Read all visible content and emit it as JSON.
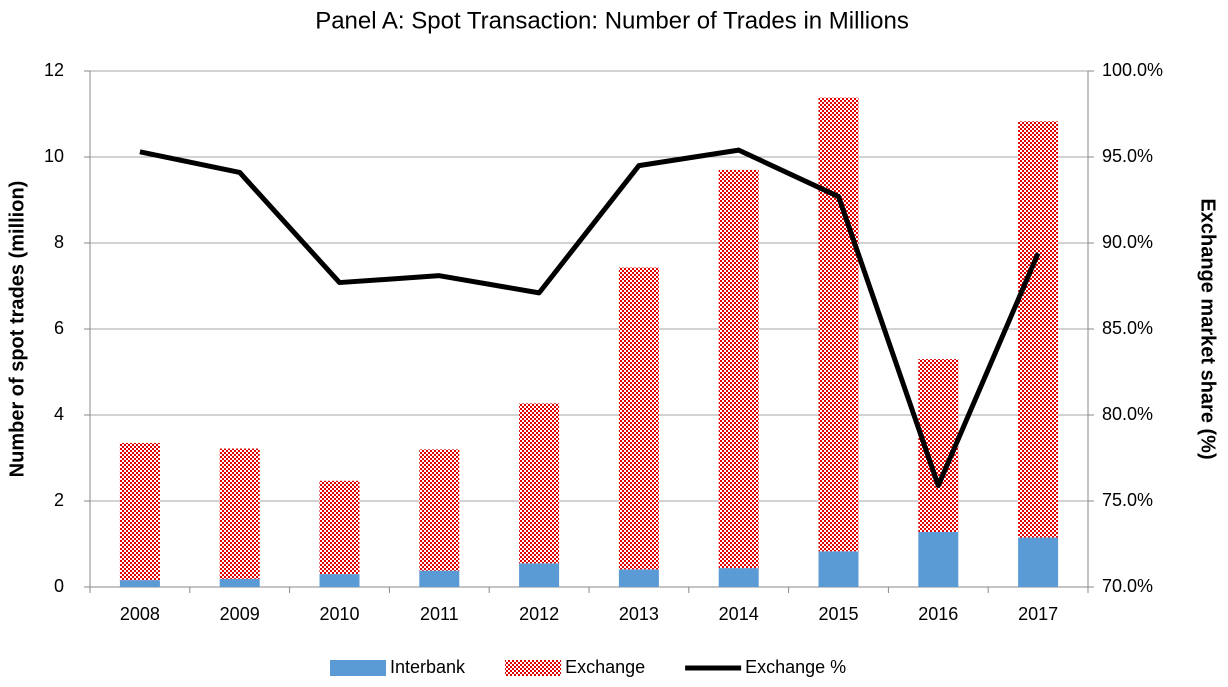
{
  "chart_data": {
    "type": "bar",
    "stacked": true,
    "title": "Panel A: Spot Transaction: Number of Trades in Millions",
    "y_label": "Number of spot trades (million)",
    "y2_label": "Exchange market share (%)",
    "categories": [
      "2008",
      "2009",
      "2010",
      "2011",
      "2012",
      "2013",
      "2014",
      "2015",
      "2016",
      "2017"
    ],
    "series": [
      {
        "name": "Interbank",
        "type": "bar",
        "color": "#5b9bd5",
        "values": [
          0.16,
          0.19,
          0.3,
          0.38,
          0.55,
          0.41,
          0.44,
          0.83,
          1.28,
          1.15
        ]
      },
      {
        "name": "Exchange",
        "type": "bar",
        "color": "#e00000",
        "pattern": "dots",
        "values": [
          3.19,
          3.03,
          2.17,
          2.82,
          3.72,
          7.02,
          9.26,
          10.55,
          4.02,
          9.68
        ]
      },
      {
        "name": "Exchange %",
        "type": "line",
        "axis": "y2",
        "color": "#000000",
        "values": [
          95.3,
          94.1,
          87.7,
          88.1,
          87.1,
          94.5,
          95.4,
          92.7,
          75.9,
          89.4
        ]
      }
    ],
    "ylim": [
      0,
      12
    ],
    "yticks": [
      0,
      2,
      4,
      6,
      8,
      10,
      12
    ],
    "y2lim": [
      70,
      100
    ],
    "y2ticks": [
      {
        "value": 70,
        "label": "70.0%"
      },
      {
        "value": 75,
        "label": "75.0%"
      },
      {
        "value": 80,
        "label": "80.0%"
      },
      {
        "value": 85,
        "label": "85.0%"
      },
      {
        "value": 90,
        "label": "90.0%"
      },
      {
        "value": 95,
        "label": "95.0%"
      },
      {
        "value": 100,
        "label": "100.0%"
      }
    ],
    "grid": true,
    "legend": "bottom"
  }
}
